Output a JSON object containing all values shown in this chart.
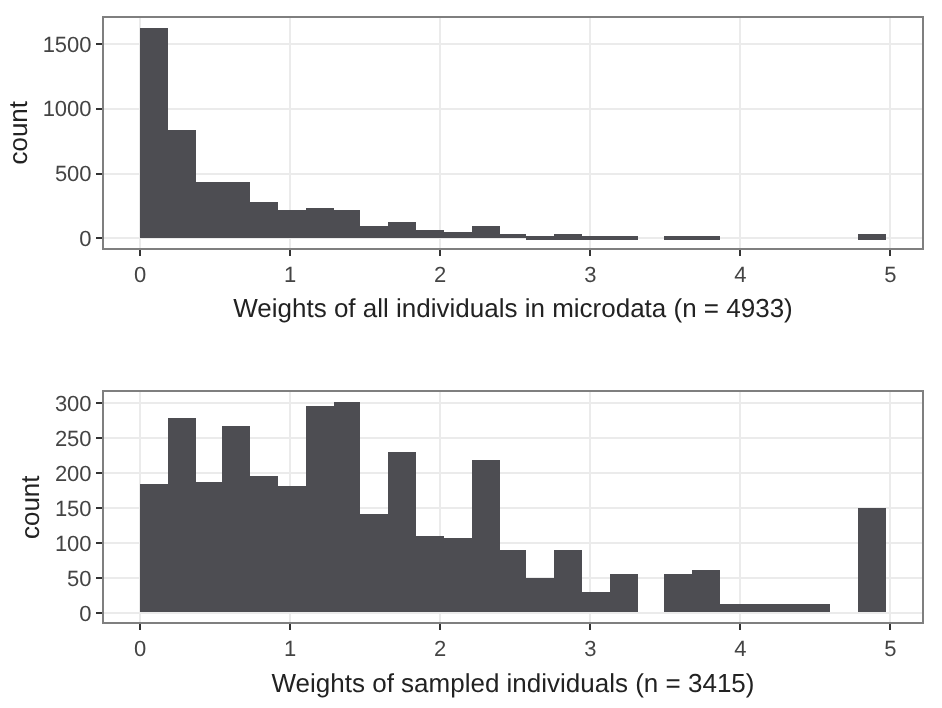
{
  "chart_data": [
    {
      "type": "histogram",
      "xlabel": "Weights of all individuals in microdata (n = 4933)",
      "ylabel": "count",
      "color": "#4d4d52",
      "bins": [
        0,
        0.184,
        0.368,
        0.552,
        0.736,
        0.92,
        1.104,
        1.288,
        1.472,
        1.656,
        1.84,
        2.024,
        2.208,
        2.392,
        2.576,
        2.76,
        2.944,
        3.128,
        3.312,
        3.496,
        3.68,
        3.864,
        4.048,
        4.232,
        4.416,
        4.6,
        4.784,
        4.968
      ],
      "values": [
        1630,
        830,
        430,
        440,
        280,
        220,
        240,
        220,
        90,
        130,
        60,
        50,
        90,
        40,
        20,
        30,
        10,
        20,
        0,
        10,
        20,
        0,
        0,
        0,
        0,
        0,
        30
      ],
      "xlim": [
        -0.24,
        5.21
      ],
      "xticks": [
        0,
        1,
        2,
        3,
        4,
        5
      ],
      "ylim": [
        -70,
        1700
      ],
      "yticks": [
        0,
        500,
        1000,
        1500
      ],
      "grid": true
    },
    {
      "type": "histogram",
      "xlabel": "Weights of sampled individuals (n = 3415)",
      "ylabel": "count",
      "color": "#4d4d52",
      "bins": [
        0,
        0.184,
        0.368,
        0.552,
        0.736,
        0.92,
        1.104,
        1.288,
        1.472,
        1.656,
        1.84,
        2.024,
        2.208,
        2.392,
        2.576,
        2.76,
        2.944,
        3.128,
        3.312,
        3.496,
        3.68,
        3.864,
        4.048,
        4.232,
        4.416,
        4.6,
        4.784,
        4.968
      ],
      "values": [
        184,
        277,
        186,
        267,
        194,
        182,
        296,
        300,
        142,
        229,
        109,
        107,
        218,
        90,
        48,
        88,
        29,
        56,
        0,
        55,
        62,
        11,
        11,
        13,
        12,
        0,
        148
      ],
      "xlim": [
        -0.24,
        5.21
      ],
      "xticks": [
        0,
        1,
        2,
        3,
        4,
        5
      ],
      "ylim": [
        -13,
        315
      ],
      "yticks": [
        0,
        50,
        100,
        150,
        200,
        250,
        300
      ],
      "grid": true
    }
  ]
}
